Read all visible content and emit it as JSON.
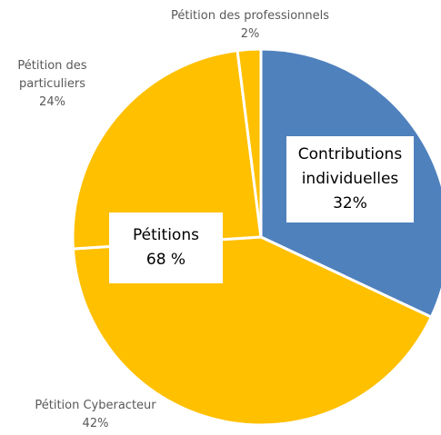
{
  "chart_data": {
    "type": "pie",
    "categories": [
      "Contributions individuelles",
      "Pétition Cyberacteur",
      "Pétition des particuliers",
      "Pétition des professionnels"
    ],
    "values": [
      32,
      42,
      24,
      2
    ],
    "value_labels": [
      "32%",
      "42%",
      "24%",
      "2%"
    ],
    "colors": [
      "#4f81bd",
      "#ffc000",
      "#ffc000",
      "#ffc000"
    ],
    "annotation": {
      "title": "Pétitions",
      "text": "68 %"
    }
  }
}
